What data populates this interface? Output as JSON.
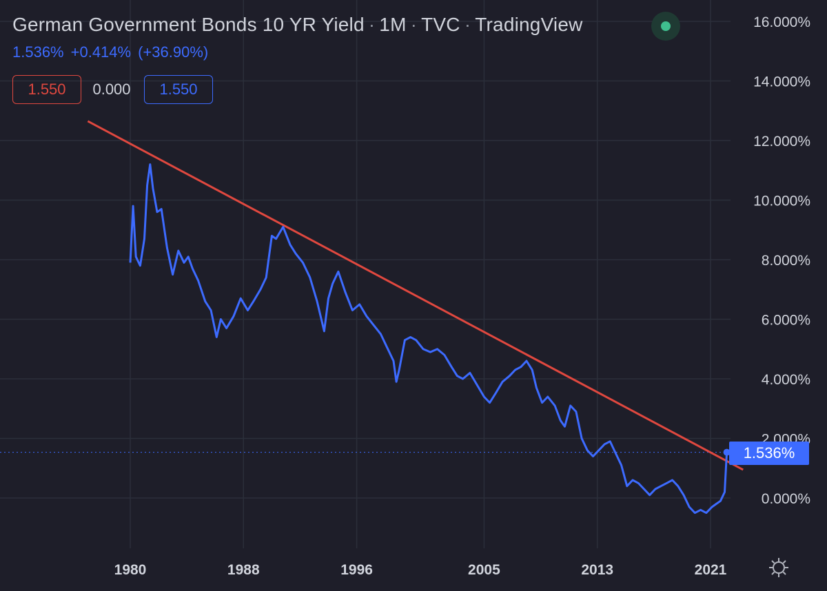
{
  "header": {
    "title": "German Government Bonds 10 YR Yield",
    "interval": "1M",
    "source": "TVC",
    "provider": "TradingView"
  },
  "change": {
    "last": "1.536%",
    "abs": "+0.414%",
    "pct": "(+36.90%)"
  },
  "values": {
    "red_box": "1.550",
    "plain": "0.000",
    "blue_box": "1.550"
  },
  "price_tag": "1.536%",
  "colors": {
    "background": "#1e1e29",
    "series": "#3d6bff",
    "trendline": "#e0483f",
    "grid": "#2b2f3a",
    "axis_text": "#d1d4dc",
    "live": "#3fbf8f"
  },
  "icons": {
    "live_status": "live-status-dot",
    "settings": "gear-icon"
  },
  "chart_data": {
    "type": "line",
    "title": "German Government Bonds 10 YR Yield · 1M · TVC · TradingView",
    "xlabel": "",
    "ylabel": "",
    "y_unit": "%",
    "ylim": [
      -1.0,
      16.5
    ],
    "xlim": [
      1976.5,
      2025.0
    ],
    "y_ticks": [
      "16.000%",
      "14.000%",
      "12.000%",
      "10.000%",
      "8.000%",
      "6.000%",
      "4.000%",
      "2.000%",
      "0.000%"
    ],
    "y_tick_values": [
      16,
      14,
      12,
      10,
      8,
      6,
      4,
      2,
      0
    ],
    "x_ticks": [
      "1980",
      "1988",
      "1996",
      "2005",
      "2013",
      "2021"
    ],
    "x_tick_values": [
      1980,
      1988,
      1996,
      2005,
      2013,
      2021
    ],
    "grid": true,
    "last_value": 1.536,
    "series": [
      {
        "name": "",
        "color": "#3d6bff",
        "x": [
          1980.0,
          1980.2,
          1980.4,
          1980.7,
          1981.0,
          1981.2,
          1981.4,
          1981.6,
          1981.9,
          1982.2,
          1982.6,
          1983.0,
          1983.4,
          1983.8,
          1984.1,
          1984.4,
          1984.8,
          1985.3,
          1985.7,
          1986.1,
          1986.4,
          1986.8,
          1987.3,
          1987.8,
          1988.3,
          1988.7,
          1989.2,
          1989.6,
          1990.0,
          1990.3,
          1990.8,
          1991.3,
          1991.7,
          1992.2,
          1992.7,
          1993.2,
          1993.7,
          1994.0,
          1994.3,
          1994.7,
          1995.2,
          1995.7,
          1996.2,
          1996.7,
          1997.2,
          1997.7,
          1998.2,
          1998.6,
          1998.8,
          1999.0,
          1999.4,
          1999.8,
          2000.2,
          2000.7,
          2001.2,
          2001.7,
          2002.2,
          2002.7,
          2003.1,
          2003.5,
          2004.0,
          2004.5,
          2005.0,
          2005.4,
          2005.8,
          2006.3,
          2006.8,
          2007.2,
          2007.6,
          2008.0,
          2008.4,
          2008.7,
          2009.1,
          2009.5,
          2010.0,
          2010.4,
          2010.7,
          2011.1,
          2011.5,
          2011.9,
          2012.3,
          2012.7,
          2013.1,
          2013.5,
          2013.9,
          2014.3,
          2014.7,
          2015.1,
          2015.5,
          2015.9,
          2016.3,
          2016.7,
          2017.1,
          2017.5,
          2017.9,
          2018.3,
          2018.7,
          2019.1,
          2019.5,
          2019.9,
          2020.3,
          2020.7,
          2021.1,
          2021.4,
          2021.7,
          2022.0,
          2022.15
        ],
        "values": [
          7.9,
          9.8,
          8.1,
          7.8,
          8.7,
          10.5,
          11.2,
          10.4,
          9.6,
          9.7,
          8.4,
          7.5,
          8.3,
          7.9,
          8.1,
          7.7,
          7.3,
          6.6,
          6.3,
          5.4,
          6.0,
          5.7,
          6.1,
          6.7,
          6.3,
          6.6,
          7.0,
          7.4,
          8.8,
          8.7,
          9.1,
          8.5,
          8.2,
          7.9,
          7.4,
          6.6,
          5.6,
          6.7,
          7.2,
          7.6,
          6.9,
          6.3,
          6.5,
          6.1,
          5.8,
          5.5,
          5.0,
          4.6,
          3.9,
          4.3,
          5.3,
          5.4,
          5.3,
          5.0,
          4.9,
          5.0,
          4.8,
          4.4,
          4.1,
          4.0,
          4.2,
          3.8,
          3.4,
          3.2,
          3.5,
          3.9,
          4.1,
          4.3,
          4.4,
          4.6,
          4.3,
          3.7,
          3.2,
          3.4,
          3.1,
          2.6,
          2.4,
          3.1,
          2.9,
          2.0,
          1.6,
          1.4,
          1.6,
          1.8,
          1.9,
          1.5,
          1.1,
          0.4,
          0.6,
          0.5,
          0.3,
          0.1,
          0.3,
          0.4,
          0.5,
          0.6,
          0.4,
          0.1,
          -0.3,
          -0.5,
          -0.4,
          -0.5,
          -0.3,
          -0.2,
          -0.1,
          0.2,
          1.536
        ]
      }
    ],
    "trendline": {
      "color": "#e0483f",
      "x": [
        1977.0,
        2023.3
      ],
      "values": [
        12.65,
        0.95
      ]
    }
  }
}
